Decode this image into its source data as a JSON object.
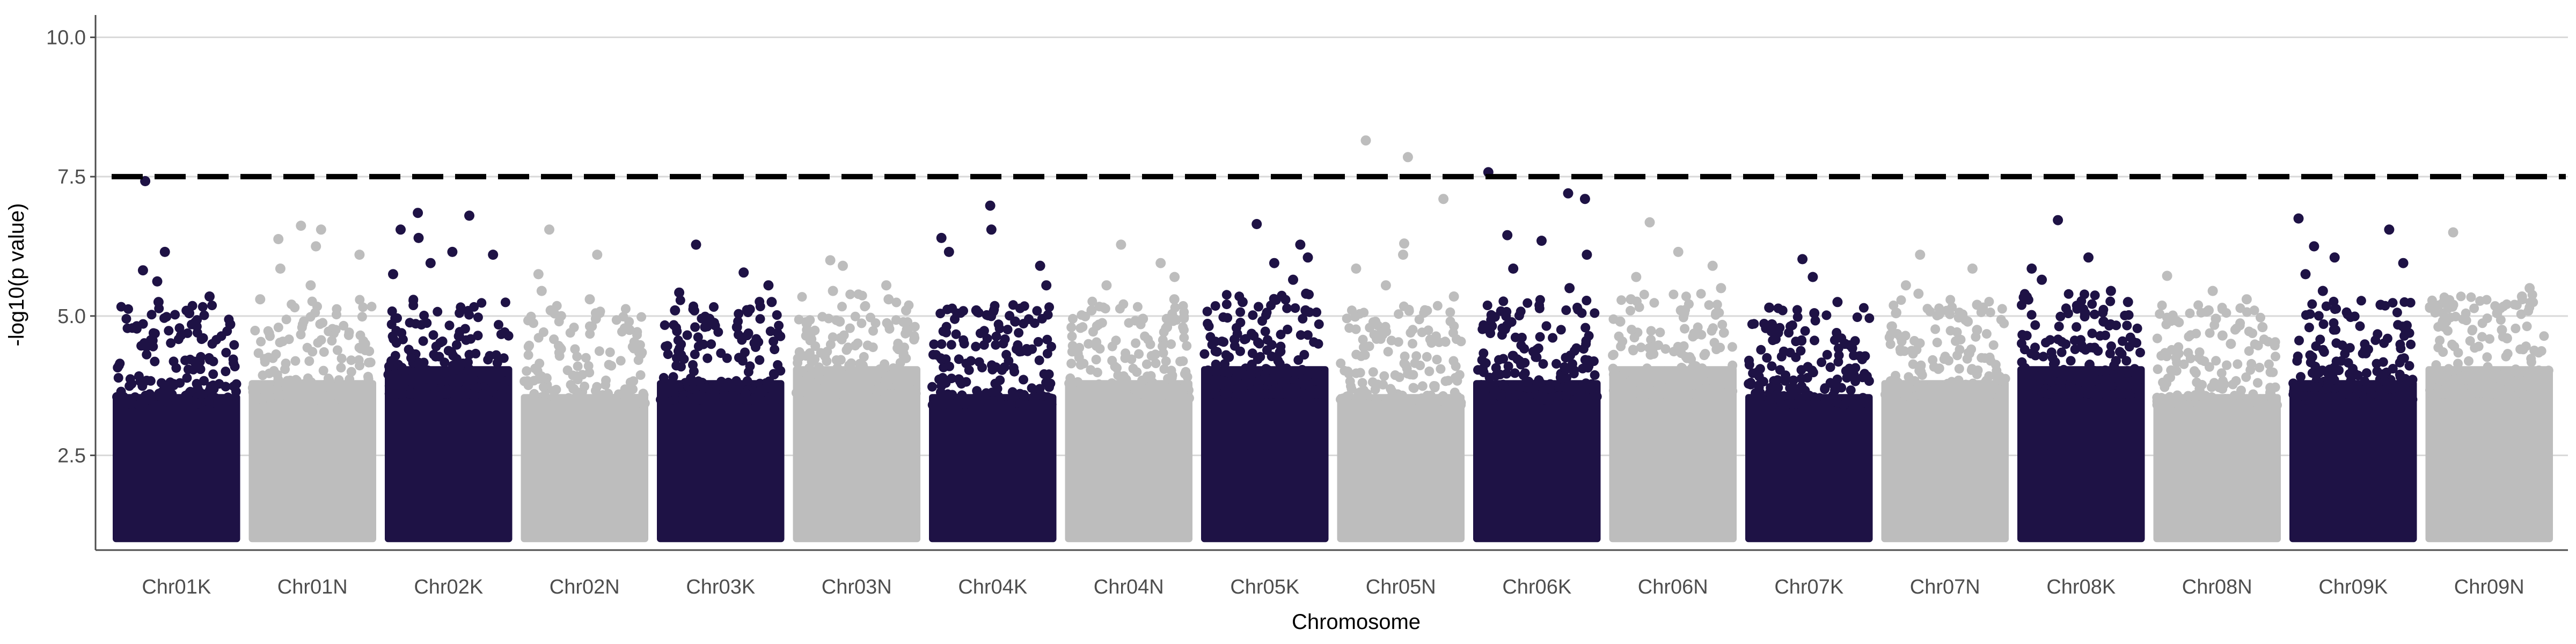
{
  "chart_data": {
    "type": "scatter",
    "subtype": "manhattan",
    "title": "",
    "xlabel": "Chromosome",
    "ylabel": "-log10(p value)",
    "ylim": [
      0.8,
      10.4
    ],
    "yticks": [
      2.5,
      5.0,
      7.5,
      10.0
    ],
    "ytick_labels": [
      "2.5",
      "5.0",
      "7.5",
      "10.0"
    ],
    "grid": "horizontal major lines",
    "legend": "none",
    "threshold": {
      "value": 7.5,
      "style": "dashed",
      "color": "#000000"
    },
    "colors": {
      "odd": "#1e1245",
      "even": "#bdbdbd"
    },
    "chromosomes": [
      {
        "name": "Chr01K",
        "peak_points": [
          7.42,
          6.15,
          5.82,
          5.62,
          5.35,
          5.25,
          5.05,
          4.85
        ]
      },
      {
        "name": "Chr01N",
        "peak_points": [
          6.62,
          6.55,
          6.38,
          6.25,
          6.1,
          5.85,
          5.55,
          5.3
        ]
      },
      {
        "name": "Chr02K",
        "peak_points": [
          6.85,
          6.8,
          6.55,
          6.4,
          6.15,
          6.1,
          5.95,
          5.75
        ]
      },
      {
        "name": "Chr02N",
        "peak_points": [
          6.55,
          6.1,
          5.75,
          5.45,
          5.3,
          5.1,
          4.95,
          4.75
        ]
      },
      {
        "name": "Chr03K",
        "peak_points": [
          6.28,
          5.78,
          5.55,
          5.42,
          5.25,
          5.1,
          4.95,
          4.8
        ]
      },
      {
        "name": "Chr03N",
        "peak_points": [
          6.0,
          5.9,
          5.55,
          5.45,
          5.3,
          5.1,
          4.9,
          4.75
        ]
      },
      {
        "name": "Chr04K",
        "peak_points": [
          6.98,
          6.55,
          6.4,
          6.15,
          5.9,
          5.55,
          5.1,
          4.9
        ]
      },
      {
        "name": "Chr04N",
        "peak_points": [
          6.28,
          5.95,
          5.7,
          5.55,
          5.3,
          5.1,
          4.95,
          4.8
        ]
      },
      {
        "name": "Chr05K",
        "peak_points": [
          6.65,
          6.28,
          6.05,
          5.95,
          5.65,
          5.4,
          5.25,
          5.1
        ]
      },
      {
        "name": "Chr05N",
        "peak_points": [
          8.15,
          7.85,
          7.1,
          6.3,
          6.1,
          5.85,
          5.55,
          5.35
        ]
      },
      {
        "name": "Chr06K",
        "peak_points": [
          7.58,
          7.2,
          7.1,
          6.45,
          6.35,
          6.1,
          5.85,
          5.5
        ]
      },
      {
        "name": "Chr06N",
        "peak_points": [
          6.68,
          6.15,
          5.9,
          5.7,
          5.5,
          5.3,
          5.1,
          4.9
        ]
      },
      {
        "name": "Chr07K",
        "peak_points": [
          6.02,
          5.7,
          5.25,
          5.15,
          5.05,
          4.85,
          4.7,
          4.5
        ]
      },
      {
        "name": "Chr07N",
        "peak_points": [
          6.1,
          5.85,
          5.55,
          5.4,
          5.2,
          5.05,
          4.9,
          4.75
        ]
      },
      {
        "name": "Chr08K",
        "peak_points": [
          6.72,
          6.05,
          5.85,
          5.65,
          5.45,
          5.25,
          5.05,
          4.9
        ]
      },
      {
        "name": "Chr08N",
        "peak_points": [
          5.72,
          5.45,
          5.3,
          5.1,
          4.95,
          4.8,
          4.65,
          4.5
        ]
      },
      {
        "name": "Chr09K",
        "peak_points": [
          6.75,
          6.55,
          6.25,
          6.05,
          5.95,
          5.75,
          5.45,
          5.2
        ]
      },
      {
        "name": "Chr09N",
        "peak_points": [
          6.5,
          5.5,
          5.35,
          5.2,
          5.05,
          4.9,
          4.75,
          4.6
        ]
      }
    ]
  }
}
